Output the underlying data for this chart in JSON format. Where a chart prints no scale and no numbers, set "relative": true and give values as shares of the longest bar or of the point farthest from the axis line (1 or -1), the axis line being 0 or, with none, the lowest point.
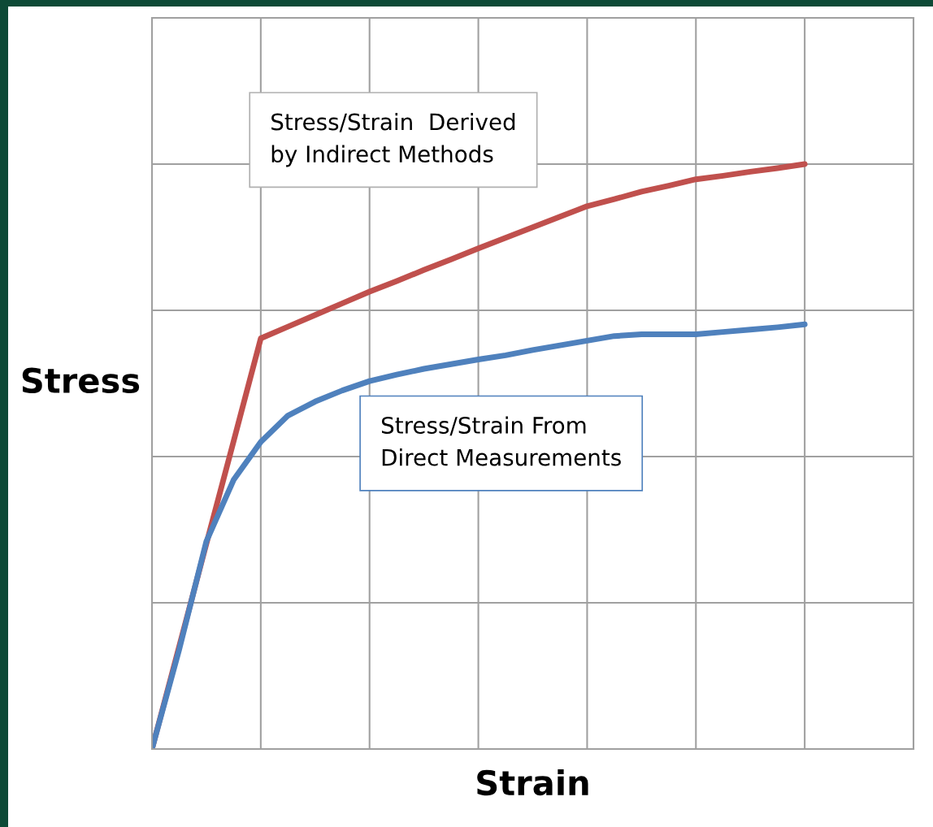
{
  "chart_data": {
    "type": "line",
    "relative": true,
    "xlabel": "Strain",
    "ylabel": "Stress",
    "categories": [
      null,
      null,
      null,
      null,
      null,
      null,
      null,
      null,
      null,
      null,
      null,
      null,
      null,
      null,
      null,
      null,
      null,
      null,
      null,
      null,
      null,
      null,
      null,
      null,
      null,
      null,
      null,
      null,
      null
    ],
    "series": [
      {
        "color": "#c0504d",
        "values": [
          0,
          0.175,
          0.351,
          0.526,
          0.702,
          0.722,
          0.742,
          0.762,
          0.782,
          0.8,
          0.819,
          0.837,
          0.856,
          0.874,
          0.892,
          0.91,
          0.928,
          0.94,
          0.953,
          0.963,
          0.974,
          0.98,
          0.987,
          0.993,
          1.0,
          null,
          null,
          null,
          null
        ]
      },
      {
        "color": "#4f81bd",
        "values": [
          0,
          0.17,
          0.355,
          0.46,
          0.525,
          0.57,
          0.594,
          0.613,
          0.629,
          0.64,
          0.65,
          0.658,
          0.666,
          0.673,
          0.682,
          0.69,
          0.698,
          0.706,
          0.709,
          0.709,
          0.709,
          0.713,
          0.717,
          0.721,
          0.726,
          null,
          null,
          null,
          null
        ]
      }
    ],
    "annotations": [
      "Stress/Strain  Derived\nby Indirect Methods",
      "Stress/Strain From\nDirect Measurements"
    ],
    "grid": true,
    "legend": false,
    "line_style": "solid",
    "marker": "none",
    "tick_labels": false
  }
}
